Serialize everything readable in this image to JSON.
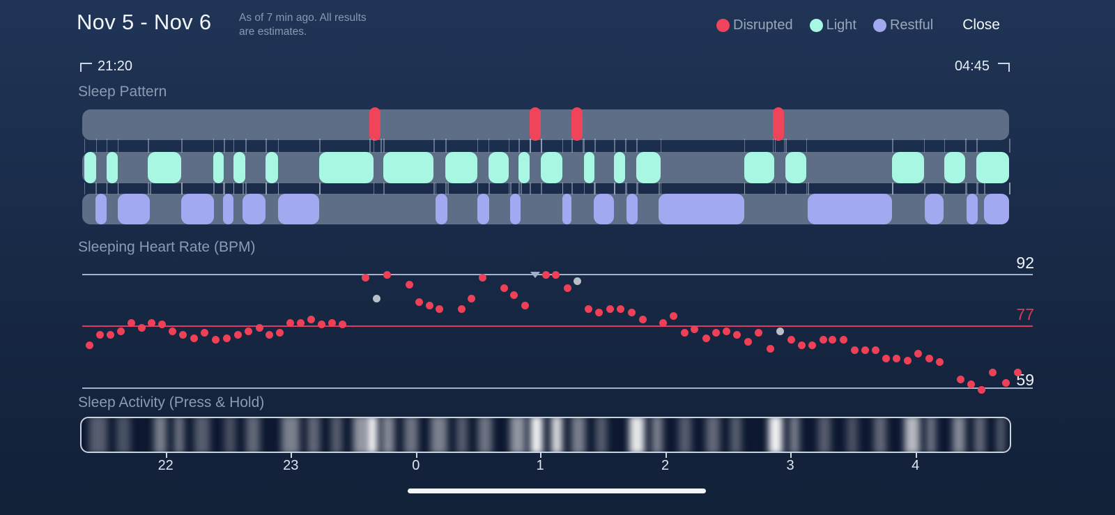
{
  "header": {
    "title": "Nov 5 - Nov 6",
    "subtitle_line1": "As of 7 min ago. All results",
    "subtitle_line2": "are estimates.",
    "legend": [
      {
        "label": "Disrupted",
        "color": "#ef4459"
      },
      {
        "label": "Light",
        "color": "#a8f7e3"
      },
      {
        "label": "Restful",
        "color": "#a3a9f1"
      }
    ],
    "close_label": "Close"
  },
  "time_range": {
    "start": "21:20",
    "end": "04:45"
  },
  "sections": {
    "sleep_pattern": "Sleep Pattern",
    "heart_rate": "Sleeping Heart Rate (BPM)",
    "activity": "Sleep Activity (Press & Hold)"
  },
  "chart_data": [
    {
      "type": "timeline",
      "title": "Sleep Pattern",
      "x_range": [
        "21:20",
        "04:45"
      ],
      "tracks": [
        {
          "name": "Disrupted",
          "color": "#ef4459",
          "segments": [
            [
              0.31,
              0.322
            ],
            [
              0.483,
              0.495
            ],
            [
              0.528,
              0.54
            ],
            [
              0.745,
              0.757
            ]
          ]
        },
        {
          "name": "Light",
          "color": "#a8f7e3",
          "segments": [
            [
              0.002,
              0.015
            ],
            [
              0.026,
              0.038
            ],
            [
              0.071,
              0.107
            ],
            [
              0.141,
              0.153
            ],
            [
              0.163,
              0.176
            ],
            [
              0.198,
              0.211
            ],
            [
              0.256,
              0.314
            ],
            [
              0.325,
              0.379
            ],
            [
              0.392,
              0.426
            ],
            [
              0.438,
              0.46
            ],
            [
              0.471,
              0.483
            ],
            [
              0.495,
              0.518
            ],
            [
              0.541,
              0.553
            ],
            [
              0.574,
              0.586
            ],
            [
              0.598,
              0.624
            ],
            [
              0.714,
              0.747
            ],
            [
              0.759,
              0.781
            ],
            [
              0.874,
              0.908
            ],
            [
              0.93,
              0.953
            ],
            [
              0.965,
              1.0
            ]
          ]
        },
        {
          "name": "Restful",
          "color": "#a3a9f1",
          "segments": [
            [
              0.014,
              0.026
            ],
            [
              0.038,
              0.073
            ],
            [
              0.107,
              0.142
            ],
            [
              0.152,
              0.163
            ],
            [
              0.173,
              0.198
            ],
            [
              0.211,
              0.256
            ],
            [
              0.381,
              0.394
            ],
            [
              0.426,
              0.439
            ],
            [
              0.462,
              0.473
            ],
            [
              0.518,
              0.528
            ],
            [
              0.552,
              0.574
            ],
            [
              0.587,
              0.599
            ],
            [
              0.622,
              0.714
            ],
            [
              0.783,
              0.874
            ],
            [
              0.909,
              0.929
            ],
            [
              0.954,
              0.966
            ],
            [
              0.973,
              1.0
            ]
          ]
        }
      ]
    },
    {
      "type": "scatter",
      "title": "Sleeping Heart Rate (BPM)",
      "ylabels": {
        "max": "92",
        "avg": "77",
        "min": "59"
      },
      "max_marker_x": 768,
      "point_color": "#ee4158",
      "gray_point_color": "#b9bfc6",
      "points": [
        [
          128,
          71.5
        ],
        [
          143,
          74.5
        ],
        [
          158,
          74.5
        ],
        [
          173,
          75.5
        ],
        [
          188,
          78
        ],
        [
          203,
          76.5
        ],
        [
          217,
          78
        ],
        [
          232,
          77.5
        ],
        [
          247,
          75.5
        ],
        [
          262,
          74.5
        ],
        [
          278,
          73.5
        ],
        [
          293,
          75
        ],
        [
          309,
          73
        ],
        [
          325,
          73.5
        ],
        [
          341,
          74.5
        ],
        [
          356,
          75.5
        ],
        [
          372,
          76.5
        ],
        [
          386,
          74.5
        ],
        [
          401,
          75
        ],
        [
          416,
          78
        ],
        [
          431,
          78
        ],
        [
          446,
          79
        ],
        [
          461,
          77.5
        ],
        [
          476,
          78
        ],
        [
          491,
          77.5
        ],
        [
          524,
          91
        ],
        [
          555,
          92
        ],
        [
          587,
          89
        ],
        [
          601,
          84
        ],
        [
          616,
          83
        ],
        [
          630,
          82
        ],
        [
          662,
          82
        ],
        [
          676,
          85
        ],
        [
          692,
          91
        ],
        [
          723,
          88
        ],
        [
          737,
          86
        ],
        [
          753,
          83
        ],
        [
          783,
          92
        ],
        [
          797,
          92
        ],
        [
          814,
          88
        ],
        [
          844,
          82
        ],
        [
          859,
          81
        ],
        [
          875,
          82
        ],
        [
          890,
          82
        ],
        [
          906,
          81
        ],
        [
          922,
          79
        ],
        [
          951,
          78
        ],
        [
          966,
          80
        ],
        [
          982,
          75
        ],
        [
          996,
          76
        ],
        [
          1013,
          73.5
        ],
        [
          1027,
          75
        ],
        [
          1042,
          75.5
        ],
        [
          1057,
          74.5
        ],
        [
          1073,
          72.5
        ],
        [
          1088,
          75
        ],
        [
          1105,
          70.5
        ],
        [
          1135,
          73
        ],
        [
          1150,
          71.5
        ],
        [
          1165,
          71.5
        ],
        [
          1181,
          73
        ],
        [
          1194,
          73
        ],
        [
          1210,
          73
        ],
        [
          1226,
          70
        ],
        [
          1241,
          70
        ],
        [
          1256,
          70
        ],
        [
          1271,
          67.5
        ],
        [
          1286,
          67.5
        ],
        [
          1302,
          67
        ],
        [
          1317,
          69
        ],
        [
          1333,
          67.5
        ],
        [
          1348,
          66.5
        ],
        [
          1378,
          61.5
        ],
        [
          1393,
          60
        ],
        [
          1408,
          58.5
        ],
        [
          1424,
          63.5
        ],
        [
          1443,
          60.5
        ],
        [
          1460,
          63.5
        ]
      ],
      "gray_points": [
        [
          540,
          85
        ],
        [
          828,
          90
        ],
        [
          1119,
          75.5
        ]
      ]
    },
    {
      "type": "activity",
      "title": "Sleep Activity (Press & Hold)",
      "hours": [
        "22",
        "23",
        "0",
        "1",
        "2",
        "3",
        "4"
      ],
      "hour_fracs": [
        0.09,
        0.225,
        0.36,
        0.494,
        0.629,
        0.764,
        0.899
      ],
      "streaks": [
        [
          0.018,
          26,
          0.3
        ],
        [
          0.045,
          20,
          0.25
        ],
        [
          0.085,
          18,
          0.45
        ],
        [
          0.105,
          14,
          0.4
        ],
        [
          0.13,
          22,
          0.3
        ],
        [
          0.16,
          16,
          0.25
        ],
        [
          0.185,
          20,
          0.35
        ],
        [
          0.225,
          26,
          0.45
        ],
        [
          0.25,
          18,
          0.35
        ],
        [
          0.275,
          16,
          0.3
        ],
        [
          0.3,
          20,
          0.55
        ],
        [
          0.313,
          16,
          0.95
        ],
        [
          0.33,
          18,
          0.5
        ],
        [
          0.355,
          20,
          0.4
        ],
        [
          0.385,
          24,
          0.45
        ],
        [
          0.41,
          16,
          0.3
        ],
        [
          0.435,
          20,
          0.4
        ],
        [
          0.47,
          22,
          0.55
        ],
        [
          0.49,
          18,
          0.95
        ],
        [
          0.512,
          16,
          0.85
        ],
        [
          0.535,
          20,
          0.45
        ],
        [
          0.56,
          16,
          0.3
        ],
        [
          0.598,
          22,
          0.9
        ],
        [
          0.62,
          16,
          0.45
        ],
        [
          0.65,
          18,
          0.3
        ],
        [
          0.68,
          20,
          0.35
        ],
        [
          0.705,
          16,
          0.3
        ],
        [
          0.748,
          20,
          0.95
        ],
        [
          0.768,
          14,
          0.45
        ],
        [
          0.8,
          18,
          0.3
        ],
        [
          0.83,
          16,
          0.25
        ],
        [
          0.86,
          18,
          0.35
        ],
        [
          0.895,
          22,
          0.7
        ],
        [
          0.915,
          14,
          0.4
        ],
        [
          0.945,
          18,
          0.5
        ],
        [
          0.968,
          16,
          0.35
        ],
        [
          0.99,
          12,
          0.3
        ]
      ]
    }
  ]
}
